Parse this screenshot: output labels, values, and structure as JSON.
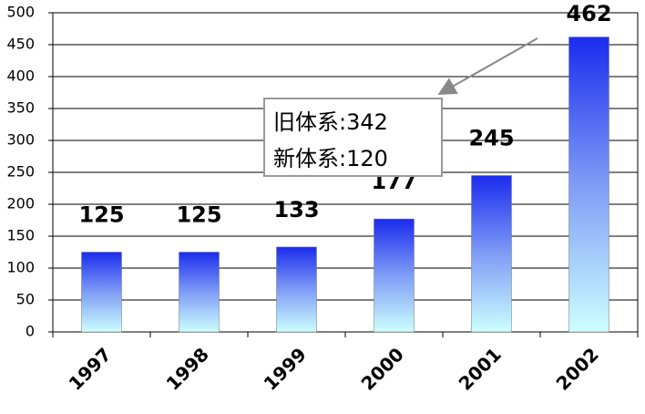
{
  "chart_data": {
    "type": "bar",
    "categories": [
      "1997",
      "1998",
      "1999",
      "2000",
      "2001",
      "2002"
    ],
    "values": [
      125,
      125,
      133,
      177,
      245,
      462
    ],
    "color": "#2030f0",
    "ylim": [
      0,
      500
    ],
    "yticks": [
      0,
      50,
      100,
      150,
      200,
      250,
      300,
      350,
      400,
      450,
      500
    ],
    "grid": true,
    "annotations": [
      "旧体系:342",
      "新体系:120"
    ]
  }
}
